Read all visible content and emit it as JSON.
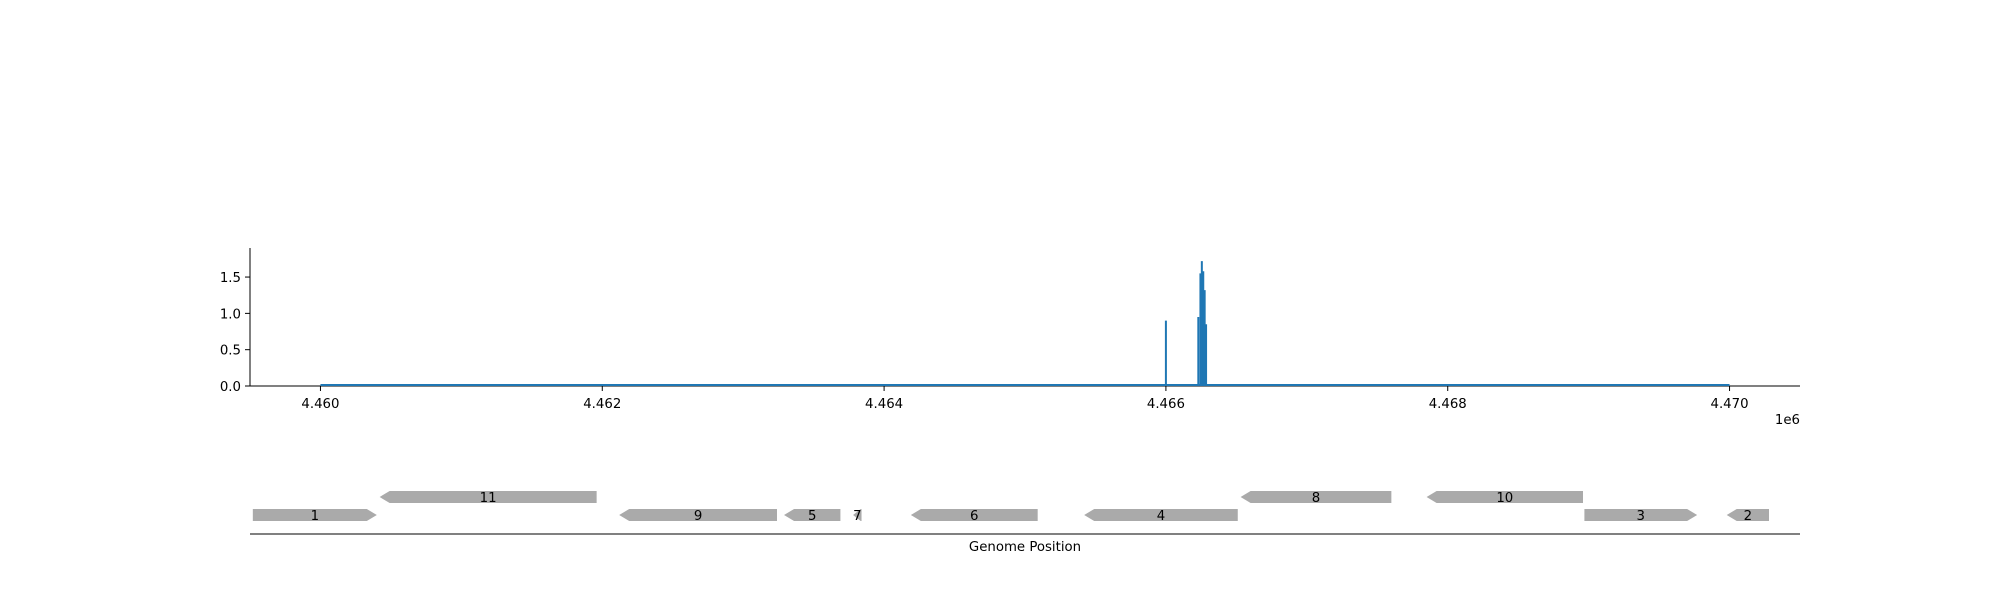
{
  "chart_data": [
    {
      "type": "bar",
      "title": "",
      "xlabel": "",
      "ylabel": "",
      "xlim": [
        4459500,
        4470500
      ],
      "ylim": [
        0,
        1.9
      ],
      "x_offset_label": "1e6",
      "x_ticks": [
        {
          "value": 4460000,
          "label": "4.460"
        },
        {
          "value": 4462000,
          "label": "4.462"
        },
        {
          "value": 4464000,
          "label": "4.464"
        },
        {
          "value": 4466000,
          "label": "4.466"
        },
        {
          "value": 4468000,
          "label": "4.468"
        },
        {
          "value": 4470000,
          "label": "4.470"
        }
      ],
      "y_ticks": [
        {
          "value": 0.0,
          "label": "0.0"
        },
        {
          "value": 0.5,
          "label": "0.5"
        },
        {
          "value": 1.0,
          "label": "1.0"
        },
        {
          "value": 1.5,
          "label": "1.5"
        }
      ],
      "baseline_range": [
        4460000,
        4470000
      ],
      "series": [
        {
          "color": "#1f77b4",
          "points": [
            {
              "x": 4466000,
              "y": 0.9
            },
            {
              "x": 4466230,
              "y": 0.95
            },
            {
              "x": 4466245,
              "y": 1.55
            },
            {
              "x": 4466255,
              "y": 1.72
            },
            {
              "x": 4466265,
              "y": 1.58
            },
            {
              "x": 4466275,
              "y": 1.32
            },
            {
              "x": 4466285,
              "y": 0.85
            }
          ]
        }
      ],
      "grid": false
    },
    {
      "type": "gene-track",
      "xlabel": "Genome Position",
      "color": "#aaaaaa",
      "genes": [
        {
          "label": "1",
          "start": 4459520,
          "end": 4460400,
          "strand": "+",
          "row": 0
        },
        {
          "label": "11",
          "start": 4460420,
          "end": 4461960,
          "strand": "-",
          "row": 1
        },
        {
          "label": "9",
          "start": 4462120,
          "end": 4463240,
          "strand": "-",
          "row": 0
        },
        {
          "label": "5",
          "start": 4463290,
          "end": 4463690,
          "strand": "-",
          "row": 0
        },
        {
          "label": "7",
          "start": 4463780,
          "end": 4463840,
          "strand": "-",
          "row": 0
        },
        {
          "label": "6",
          "start": 4464190,
          "end": 4465090,
          "strand": "-",
          "row": 0
        },
        {
          "label": "4",
          "start": 4465420,
          "end": 4466510,
          "strand": "-",
          "row": 0
        },
        {
          "label": "8",
          "start": 4466530,
          "end": 4467600,
          "strand": "-",
          "row": 1
        },
        {
          "label": "10",
          "start": 4467850,
          "end": 4468960,
          "strand": "-",
          "row": 1
        },
        {
          "label": "3",
          "start": 4468970,
          "end": 4469770,
          "strand": "+",
          "row": 0
        },
        {
          "label": "2",
          "start": 4469980,
          "end": 4470280,
          "strand": "-",
          "row": 0
        }
      ]
    }
  ]
}
